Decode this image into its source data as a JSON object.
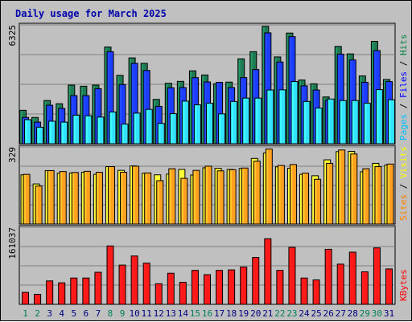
{
  "chart_data": {
    "type": "bar",
    "title": "Daily usage for March 2025",
    "categories": [
      "1",
      "2",
      "3",
      "4",
      "5",
      "6",
      "7",
      "8",
      "9",
      "10",
      "11",
      "12",
      "13",
      "14",
      "15",
      "16",
      "17",
      "18",
      "19",
      "20",
      "21",
      "22",
      "23",
      "24",
      "25",
      "26",
      "27",
      "28",
      "29",
      "30",
      "31"
    ],
    "weekend_days": [
      "1",
      "2",
      "8",
      "9",
      "15",
      "16",
      "22",
      "23",
      "29",
      "30"
    ],
    "panels": [
      {
        "id": "hits",
        "max_label": "6325",
        "ymax": 6325,
        "series_labels": [
          "Pages",
          "Files",
          "Hits"
        ],
        "series_label_colors": [
          "#00c0ff",
          "#0000ff",
          "#008040"
        ],
        "series": [
          {
            "name": "Hits",
            "color": "#1e7a52",
            "values": [
              1780,
              1400,
              2300,
              2130,
              3120,
              3060,
              3120,
              5150,
              3640,
              4570,
              4280,
              2360,
              3220,
              3320,
              3880,
              3660,
              3190,
              3280,
              4520,
              4900,
              6250,
              4620,
              5890,
              3390,
              3190,
              2490,
              5180,
              4780,
              3610,
              5450,
              3420
            ]
          },
          {
            "name": "Files",
            "color": "#1c3cff",
            "values": [
              1400,
              1150,
              2050,
              1880,
              2560,
              2560,
              2930,
              4900,
              3150,
              4280,
              3900,
              1990,
              2980,
              2990,
              3520,
              3290,
              3270,
              2990,
              3520,
              3950,
              5900,
              4350,
              5700,
              3080,
              2860,
              2310,
              4770,
              4460,
              3270,
              4960,
              3310
            ]
          },
          {
            "name": "Pages",
            "color": "#33e2ff",
            "values": [
              1280,
              880,
              1200,
              1150,
              1520,
              1490,
              1420,
              1690,
              1050,
              1630,
              1830,
              1080,
              1600,
              2270,
              2070,
              2160,
              1590,
              2250,
              2430,
              2430,
              2860,
              2870,
              3310,
              2250,
              1900,
              2380,
              2300,
              2300,
              2160,
              2880,
              2340
            ]
          }
        ]
      },
      {
        "id": "visits",
        "max_label": "329",
        "ymax": 329,
        "series_labels": [
          "Sites",
          "Visits"
        ],
        "series_label_colors": [
          "#ff8000",
          "#ffff00"
        ],
        "series": [
          {
            "name": "Visits",
            "color": "#ffff33",
            "values": [
              210,
              171,
              228,
              217,
              218,
              221,
              212,
              245,
              229,
              248,
              217,
              210,
              213,
              233,
              209,
              240,
              238,
              233,
              237,
              280,
              303,
              244,
              238,
              212,
              206,
              274,
              309,
              310,
              223,
              259,
              252
            ]
          },
          {
            "name": "Sites",
            "color": "#ffa020",
            "values": [
              212,
              162,
              228,
              224,
              220,
              225,
              221,
              245,
              221,
              247,
              218,
              185,
              236,
              195,
              229,
              247,
              227,
              232,
              239,
              268,
              320,
              250,
              254,
              217,
              191,
              259,
              316,
              299,
              236,
              245,
              256
            ]
          }
        ]
      },
      {
        "id": "kbytes",
        "max_label": "161037",
        "ymax": 161037,
        "series_labels": [
          "KBytes"
        ],
        "series_label_colors": [
          "#ff0000"
        ],
        "series": [
          {
            "name": "KBytes",
            "color": "#ff1818",
            "values": [
              25000,
              21000,
              49000,
              45000,
              55000,
              55000,
              67000,
              122000,
              82000,
              101000,
              86000,
              43000,
              65000,
              46000,
              71000,
              62000,
              71000,
              72000,
              78000,
              98000,
              137000,
              71000,
              119000,
              55000,
              51000,
              115000,
              84000,
              109000,
              68000,
              118000,
              74000
            ]
          }
        ]
      }
    ]
  }
}
